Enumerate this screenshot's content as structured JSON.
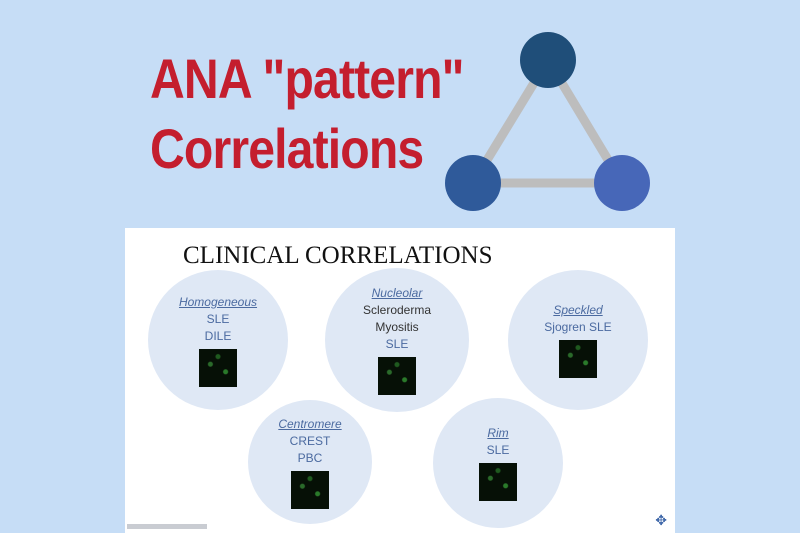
{
  "title": {
    "line1": "ANA \"pattern\"",
    "line2": "Correlations"
  },
  "colors": {
    "title": "#c41e2e",
    "background": "#c6ddf6",
    "node_top": "#1f4e79",
    "node_left": "#2f5a9a",
    "node_right": "#4767b8",
    "circle": "#dfe8f5"
  },
  "panel": {
    "heading": "CLINICAL CORRELATIONS",
    "patterns": [
      {
        "name": "Homogeneous",
        "items": [
          "SLE",
          "DILE"
        ]
      },
      {
        "name": "Nucleolar",
        "items": [
          "Scleroderma",
          "Myositis",
          "SLE"
        ]
      },
      {
        "name": "Speckled",
        "items": [
          "Sjogren SLE"
        ]
      },
      {
        "name": "Centromere",
        "items": [
          "CREST",
          "PBC"
        ]
      },
      {
        "name": "Rim",
        "items": [
          "SLE"
        ]
      }
    ]
  }
}
